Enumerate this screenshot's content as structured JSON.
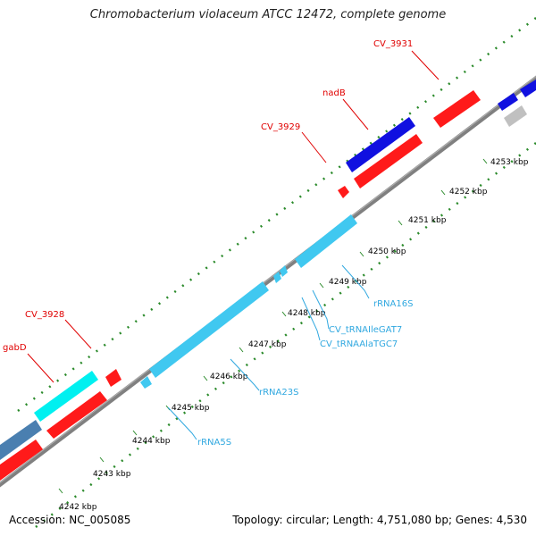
{
  "title": "Chromobacterium violaceum ATCC 12472, complete genome",
  "footer": {
    "accession": "Accession: NC_005085",
    "summary": "Topology: circular; Length: 4,751,080 bp; Genes: 4,530"
  },
  "scale_labels": [
    "4242 kbp",
    "4243 kbp",
    "4244 kbp",
    "4245 kbp",
    "4246 kbp",
    "4247 kbp",
    "4248 kbp",
    "4249 kbp",
    "4250 kbp",
    "4251 kbp",
    "4252 kbp",
    "4253 kbp"
  ],
  "gene_labels": {
    "cv3931": "CV_3931",
    "nadB": "nadB",
    "cv3929": "CV_3929",
    "cv3928": "CV_3928",
    "gabD": "gabD",
    "rrna16s": "rRNA16S",
    "trnaIle": "CV_tRNAIleGAT7",
    "trnaAla": "CV_tRNAAlaTGC7",
    "rrna23s": "rRNA23S",
    "rrna5s": "rRNA5S"
  },
  "colors": {
    "cds_forward": "#ff1a1a",
    "cds_reverse": "#1010e0",
    "cds_other": "#00f0f0",
    "rrna": "#40c8f0",
    "label_gene": "#e00000",
    "label_rna": "#30a8e0",
    "backbone": "#808080",
    "ticks": "#2a8a2a",
    "grey_feature": "#c0c0c0",
    "steel_feature": "#4a7fb0"
  }
}
